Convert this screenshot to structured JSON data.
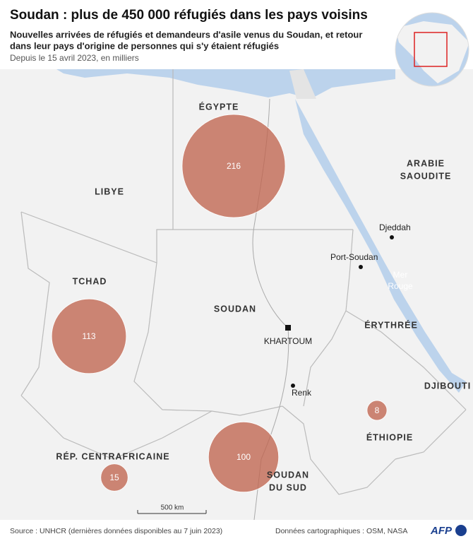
{
  "header": {
    "title": "Soudan : plus de 450 000 réfugiés dans les pays voisins",
    "subtitle": [
      "Nouvelles arrivées de réfugiés et demandeurs d'asile venus du Soudan, et retour",
      "dans leur pays d'origine de personnes qui s'y étaient réfugiés"
    ],
    "note": "Depuis le 15 avril 2023, en milliers"
  },
  "map": {
    "countries": [
      {
        "lines": [
          "ÉGYPTE"
        ]
      },
      {
        "lines": [
          "LIBYE"
        ]
      },
      {
        "lines": [
          "TCHAD"
        ]
      },
      {
        "lines": [
          "SOUDAN"
        ]
      },
      {
        "lines": [
          "ARABIE",
          "SAOUDITE"
        ]
      },
      {
        "lines": [
          "ÉRYTHRÉE"
        ]
      },
      {
        "lines": [
          "DJIBOUTI"
        ]
      },
      {
        "lines": [
          "ÉTHIOPIE"
        ]
      },
      {
        "lines": [
          "RÉP. CENTRAFRICAINE"
        ]
      },
      {
        "lines": [
          "SOUDAN",
          "DU SUD"
        ]
      }
    ],
    "cities": [
      "Djeddah",
      "Port-Soudan",
      "KHARTOUM",
      "Renk"
    ],
    "sea": [
      "Mer",
      "Rouge"
    ],
    "scale": "500 km"
  },
  "refugees": {
    "values": [
      216,
      113,
      100,
      15,
      8
    ]
  },
  "footer": {
    "source": "Source : UNHCR (dernières données disponibles au 7 juin 2023)",
    "credits": "Données cartographiques : OSM, NASA",
    "logo": "AFP"
  }
}
